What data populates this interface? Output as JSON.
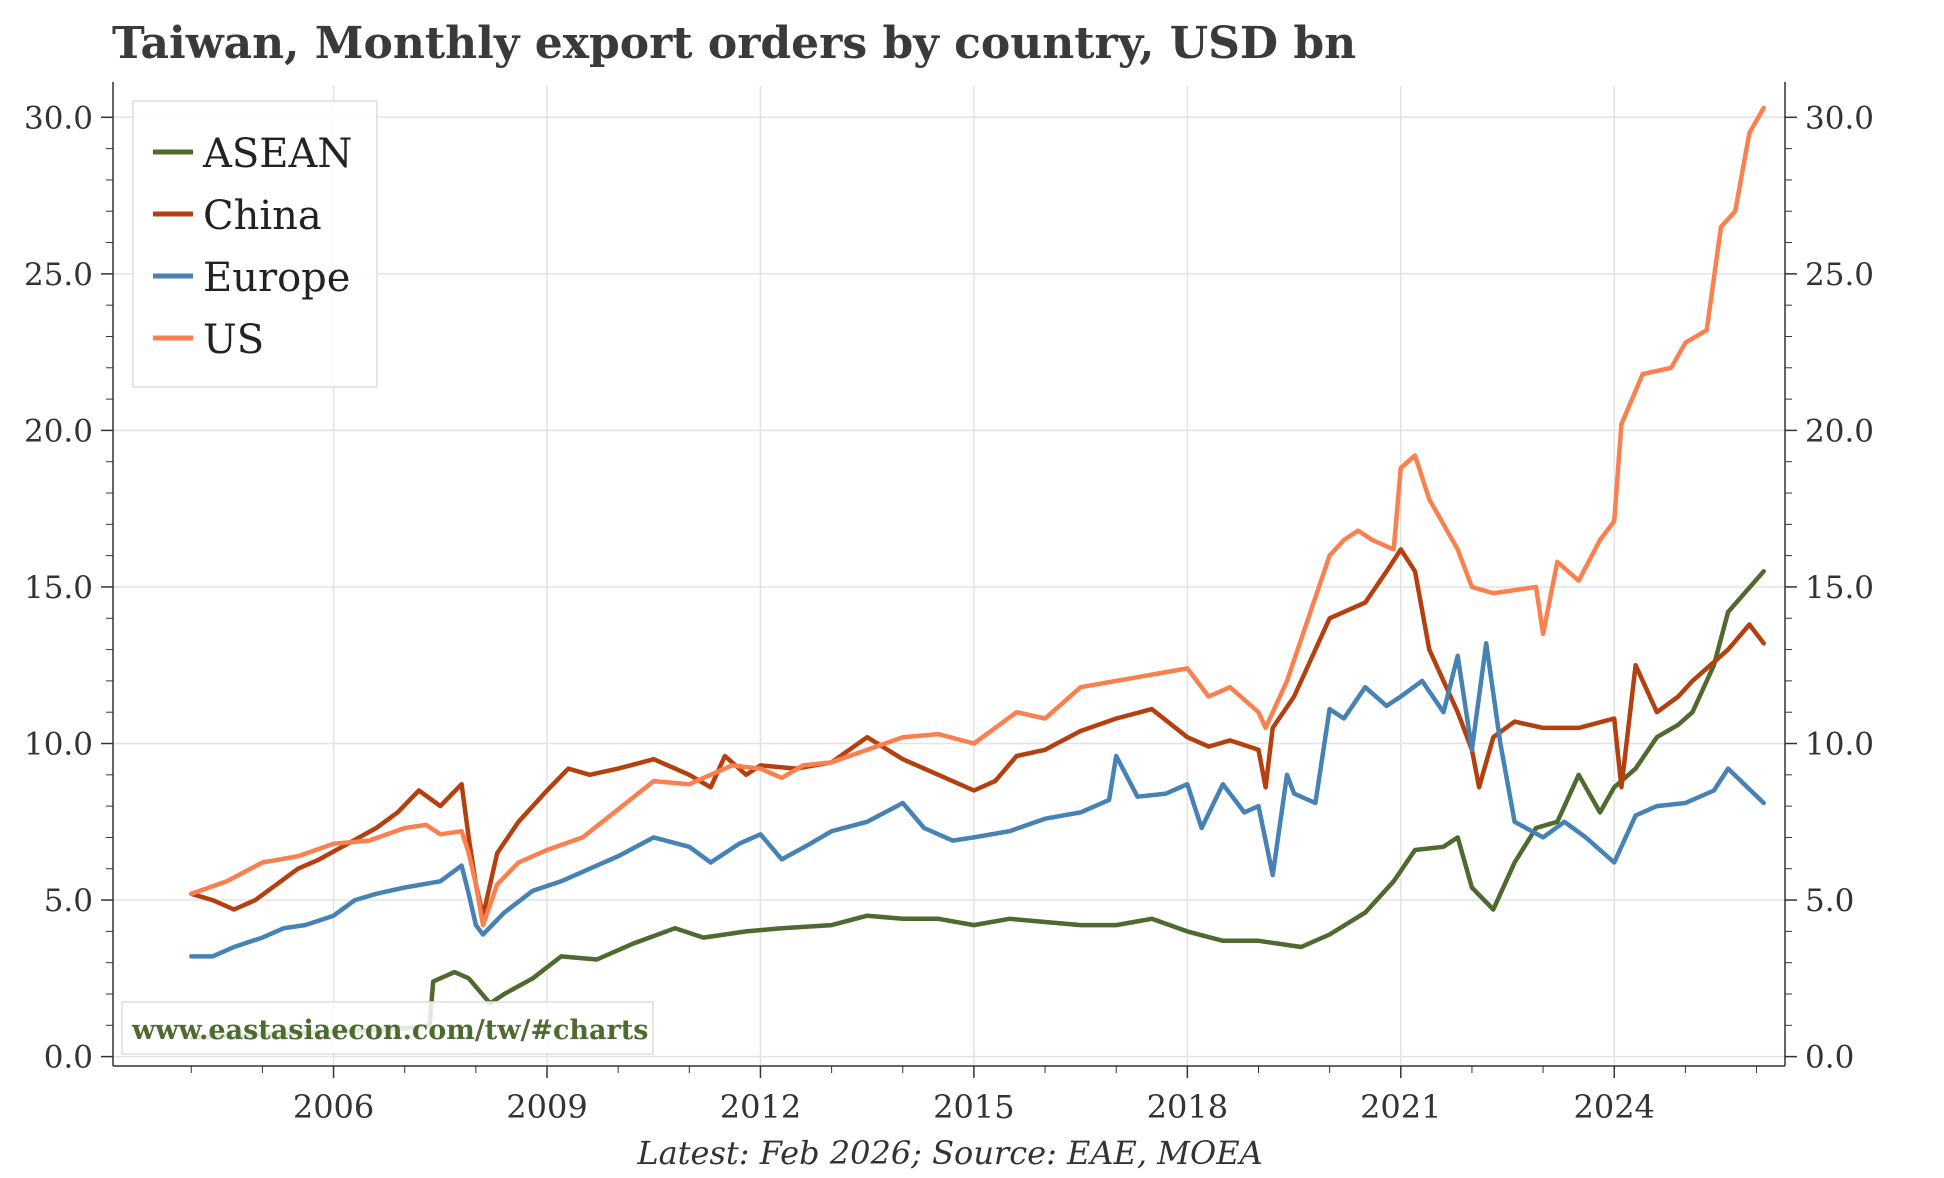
{
  "chart_data": {
    "type": "line",
    "title": "Taiwan, Monthly export orders by country, USD bn",
    "source_note": "Latest: Feb 2026; Source: EAE, MOEA",
    "watermark": "www.eastasiaecon.com/tw/#charts",
    "xlabel": "",
    "ylabel": "",
    "xlim": [
      2002.9,
      2026.4
    ],
    "ylim": [
      -0.3,
      31.0
    ],
    "x_ticks": [
      "2006",
      "2009",
      "2012",
      "2015",
      "2018",
      "2021",
      "2024"
    ],
    "y_ticks": [
      "0.0",
      "5.0",
      "10.0",
      "15.0",
      "20.0",
      "25.0",
      "30.0"
    ],
    "grid": true,
    "legend_position": "top-left",
    "colors": {
      "ASEAN": "#4e6a2e",
      "China": "#b5400f",
      "Europe": "#4682b4",
      "US": "#fa8050"
    },
    "series": [
      {
        "name": "ASEAN",
        "x": [
          2004.0,
          2005.0,
          2006.0,
          2007.0,
          2007.35,
          2007.4,
          2007.7,
          2007.9,
          2008.2,
          2008.4,
          2008.8,
          2009.2,
          2009.7,
          2010.2,
          2010.8,
          2011.2,
          2011.8,
          2012.3,
          2013.0,
          2013.5,
          2014.0,
          2014.5,
          2015.0,
          2015.5,
          2016.0,
          2016.5,
          2017.0,
          2017.5,
          2018.0,
          2018.5,
          2019.0,
          2019.3,
          2019.6,
          2020.0,
          2020.5,
          2020.9,
          2021.2,
          2021.6,
          2021.8,
          2022.0,
          2022.3,
          2022.6,
          2022.9,
          2023.2,
          2023.5,
          2023.8,
          2024.0,
          2024.3,
          2024.6,
          2024.9,
          2025.1,
          2025.4,
          2025.6,
          2026.1
        ],
        "values": [
          0.6,
          0.7,
          0.8,
          0.9,
          1.0,
          2.4,
          2.7,
          2.5,
          1.7,
          2.0,
          2.5,
          3.2,
          3.1,
          3.6,
          4.1,
          3.8,
          4.0,
          4.1,
          4.2,
          4.5,
          4.4,
          4.4,
          4.2,
          4.4,
          4.3,
          4.2,
          4.2,
          4.4,
          4.0,
          3.7,
          3.7,
          3.6,
          3.5,
          3.9,
          4.6,
          5.6,
          6.6,
          6.7,
          7.0,
          5.4,
          4.7,
          6.2,
          7.3,
          7.5,
          9.0,
          7.8,
          8.6,
          9.2,
          10.2,
          10.6,
          11.0,
          12.5,
          14.2,
          15.5
        ]
      },
      {
        "name": "China",
        "x": [
          2004.0,
          2004.3,
          2004.6,
          2004.9,
          2005.2,
          2005.5,
          2005.8,
          2006.2,
          2006.6,
          2006.9,
          2007.2,
          2007.5,
          2007.8,
          2007.9,
          2008.0,
          2008.1,
          2008.3,
          2008.6,
          2009.0,
          2009.3,
          2009.6,
          2010.0,
          2010.5,
          2011.0,
          2011.3,
          2011.5,
          2011.8,
          2012.0,
          2012.5,
          2013.0,
          2013.5,
          2014.0,
          2014.5,
          2015.0,
          2015.3,
          2015.6,
          2016.0,
          2016.5,
          2017.0,
          2017.5,
          2018.0,
          2018.3,
          2018.6,
          2019.0,
          2019.1,
          2019.2,
          2019.5,
          2019.8,
          2020.0,
          2020.5,
          2020.8,
          2021.0,
          2021.2,
          2021.4,
          2021.6,
          2021.8,
          2022.0,
          2022.1,
          2022.3,
          2022.6,
          2023.0,
          2023.5,
          2024.0,
          2024.1,
          2024.3,
          2024.6,
          2024.9,
          2025.1,
          2025.4,
          2025.6,
          2025.9,
          2026.1
        ],
        "values": [
          5.2,
          5.0,
          4.7,
          5.0,
          5.5,
          6.0,
          6.3,
          6.8,
          7.3,
          7.8,
          8.5,
          8.0,
          8.7,
          7.0,
          5.5,
          4.5,
          6.5,
          7.5,
          8.5,
          9.2,
          9.0,
          9.2,
          9.5,
          9.0,
          8.6,
          9.6,
          9.0,
          9.3,
          9.2,
          9.4,
          10.2,
          9.5,
          9.0,
          8.5,
          8.8,
          9.6,
          9.8,
          10.4,
          10.8,
          11.1,
          10.2,
          9.9,
          10.1,
          9.8,
          8.6,
          10.5,
          11.5,
          13.0,
          14.0,
          14.5,
          15.5,
          16.2,
          15.5,
          13.0,
          12.0,
          11.0,
          9.8,
          8.6,
          10.2,
          10.7,
          10.5,
          10.5,
          10.8,
          8.6,
          12.5,
          11.0,
          11.5,
          12.0,
          12.6,
          13.0,
          13.8,
          13.2
        ]
      },
      {
        "name": "Europe",
        "x": [
          2004.0,
          2004.3,
          2004.6,
          2005.0,
          2005.3,
          2005.6,
          2006.0,
          2006.3,
          2006.6,
          2007.0,
          2007.5,
          2007.8,
          2007.9,
          2008.0,
          2008.1,
          2008.4,
          2008.8,
          2009.2,
          2009.6,
          2010.0,
          2010.5,
          2011.0,
          2011.3,
          2011.7,
          2012.0,
          2012.3,
          2012.7,
          2013.0,
          2013.5,
          2014.0,
          2014.3,
          2014.7,
          2015.0,
          2015.5,
          2016.0,
          2016.5,
          2016.9,
          2017.0,
          2017.3,
          2017.7,
          2018.0,
          2018.2,
          2018.5,
          2018.8,
          2019.0,
          2019.2,
          2019.4,
          2019.5,
          2019.8,
          2020.0,
          2020.2,
          2020.5,
          2020.8,
          2021.0,
          2021.3,
          2021.6,
          2021.8,
          2022.0,
          2022.2,
          2022.4,
          2022.6,
          2023.0,
          2023.3,
          2023.6,
          2024.0,
          2024.3,
          2024.6,
          2025.0,
          2025.4,
          2025.6,
          2026.1
        ],
        "values": [
          3.2,
          3.2,
          3.5,
          3.8,
          4.1,
          4.2,
          4.5,
          5.0,
          5.2,
          5.4,
          5.6,
          6.1,
          5.2,
          4.2,
          3.9,
          4.6,
          5.3,
          5.6,
          6.0,
          6.4,
          7.0,
          6.7,
          6.2,
          6.8,
          7.1,
          6.3,
          6.8,
          7.2,
          7.5,
          8.1,
          7.3,
          6.9,
          7.0,
          7.2,
          7.6,
          7.8,
          8.2,
          9.6,
          8.3,
          8.4,
          8.7,
          7.3,
          8.7,
          7.8,
          8.0,
          5.8,
          9.0,
          8.4,
          8.1,
          11.1,
          10.8,
          11.8,
          11.2,
          11.5,
          12.0,
          11.0,
          12.8,
          9.8,
          13.2,
          10.0,
          7.5,
          7.0,
          7.5,
          7.0,
          6.2,
          7.7,
          8.0,
          8.1,
          8.5,
          9.2,
          8.1
        ]
      },
      {
        "name": "US",
        "x": [
          2004.0,
          2004.5,
          2005.0,
          2005.5,
          2006.0,
          2006.5,
          2007.0,
          2007.3,
          2007.5,
          2007.8,
          2007.9,
          2008.0,
          2008.1,
          2008.3,
          2008.6,
          2009.0,
          2009.5,
          2010.0,
          2010.5,
          2011.0,
          2011.3,
          2011.6,
          2012.0,
          2012.3,
          2012.6,
          2013.0,
          2013.5,
          2014.0,
          2014.5,
          2015.0,
          2015.3,
          2015.6,
          2016.0,
          2016.5,
          2017.0,
          2017.5,
          2018.0,
          2018.3,
          2018.6,
          2019.0,
          2019.1,
          2019.4,
          2019.7,
          2020.0,
          2020.2,
          2020.4,
          2020.6,
          2020.9,
          2021.0,
          2021.2,
          2021.4,
          2021.6,
          2021.8,
          2022.0,
          2022.3,
          2022.6,
          2022.9,
          2023.0,
          2023.2,
          2023.5,
          2023.8,
          2024.0,
          2024.1,
          2024.4,
          2024.8,
          2025.0,
          2025.3,
          2025.5,
          2025.7,
          2025.9,
          2026.1
        ],
        "values": [
          5.2,
          5.6,
          6.2,
          6.4,
          6.8,
          6.9,
          7.3,
          7.4,
          7.1,
          7.2,
          6.5,
          5.5,
          4.2,
          5.5,
          6.2,
          6.6,
          7.0,
          7.9,
          8.8,
          8.7,
          9.0,
          9.3,
          9.2,
          8.9,
          9.3,
          9.4,
          9.8,
          10.2,
          10.3,
          10.0,
          10.5,
          11.0,
          10.8,
          11.8,
          12.0,
          12.2,
          12.4,
          11.5,
          11.8,
          11.0,
          10.5,
          12.0,
          14.0,
          16.0,
          16.5,
          16.8,
          16.5,
          16.2,
          18.8,
          19.2,
          17.8,
          17.0,
          16.2,
          15.0,
          14.8,
          14.9,
          15.0,
          13.5,
          15.8,
          15.2,
          16.5,
          17.1,
          20.2,
          21.8,
          22.0,
          22.8,
          23.2,
          26.5,
          27.0,
          29.5,
          30.3
        ]
      }
    ]
  }
}
